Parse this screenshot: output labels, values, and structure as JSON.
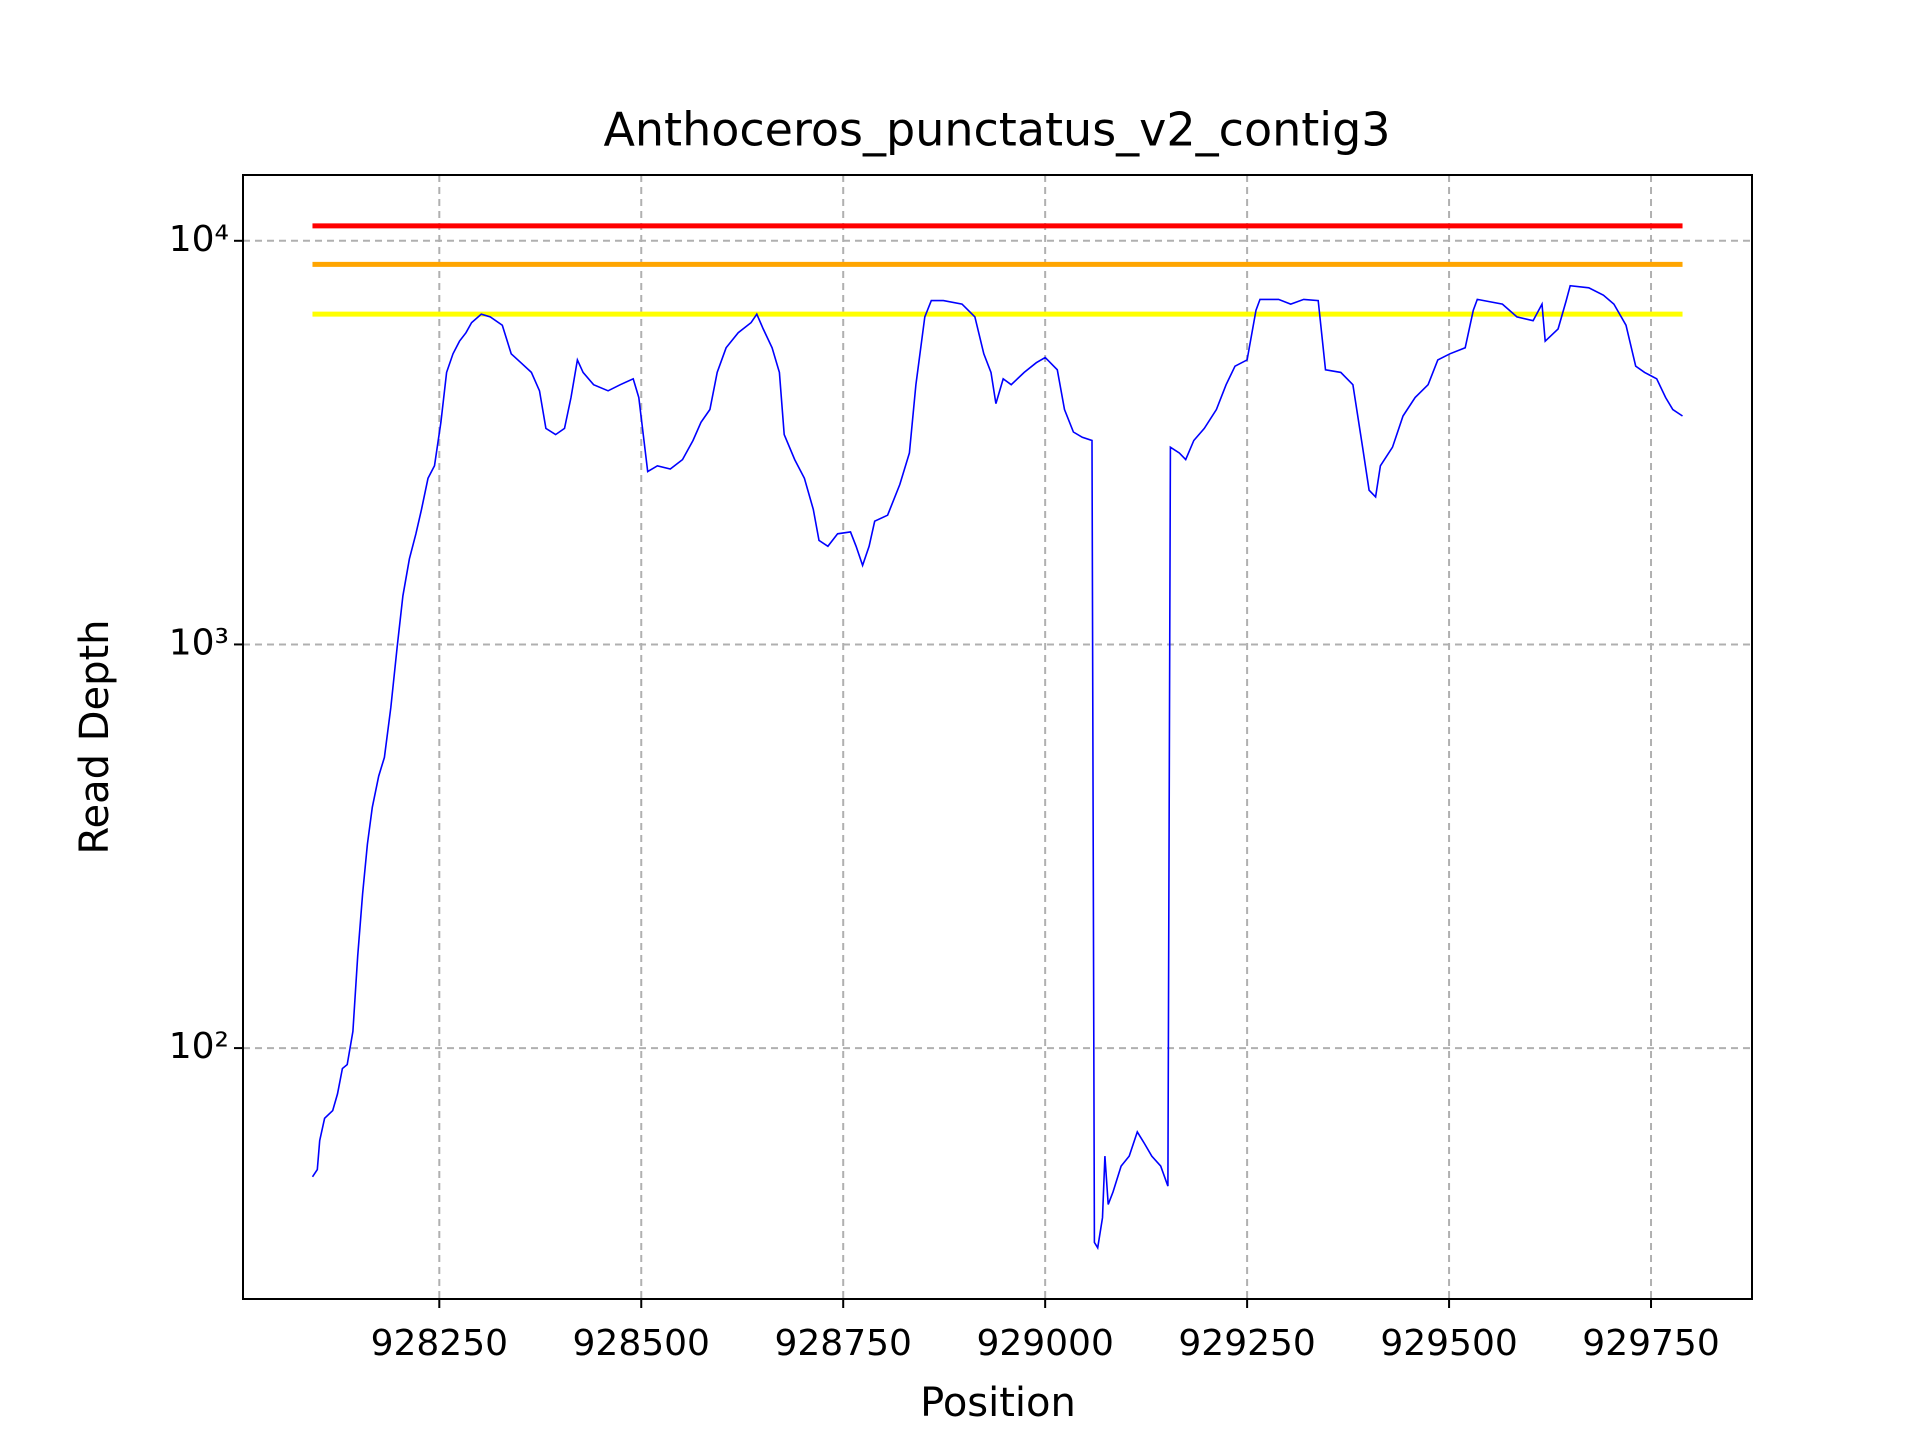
{
  "chart_data": {
    "type": "line",
    "title": "Anthoceros_punctatus_v2_contig3",
    "xlabel": "Position",
    "ylabel": "Read Depth",
    "yscale": "log",
    "grid": true,
    "color": "#0000ff",
    "x": [
      928093,
      928099,
      928102,
      928108,
      928118,
      928124,
      928130,
      928136,
      928143,
      928149,
      928155,
      928161,
      928167,
      928175,
      928182,
      928190,
      928198,
      928205,
      928213,
      928221,
      928228,
      928236,
      928244,
      928252,
      928259,
      928267,
      928275,
      928283,
      928290,
      928302,
      928313,
      928328,
      928339,
      928351,
      928364,
      928374,
      928382,
      928394,
      928405,
      928413,
      928421,
      928428,
      928441,
      928459,
      928474,
      928490,
      928497,
      928508,
      928520,
      928536,
      928551,
      928564,
      928574,
      928585,
      928594,
      928605,
      928620,
      928636,
      928643,
      928651,
      928662,
      928671,
      928677,
      928690,
      928702,
      928713,
      928720,
      928731,
      928743,
      928759,
      928766,
      928774,
      928782,
      928789,
      928805,
      928820,
      928832,
      928840,
      928851,
      928859,
      928874,
      928897,
      928913,
      928924,
      928933,
      928939,
      928948,
      928958,
      928974,
      928989,
      929000,
      929015,
      929024,
      929035,
      929046,
      929058,
      929061,
      929065,
      929071,
      929074,
      929078,
      929084,
      929094,
      929104,
      929114,
      929123,
      929132,
      929143,
      929152,
      929155,
      929166,
      929174,
      929184,
      929197,
      929212,
      929224,
      929235,
      929250,
      929261,
      929266,
      929289,
      929304,
      929320,
      929338,
      929347,
      929366,
      929381,
      929393,
      929401,
      929409,
      929415,
      929430,
      929443,
      929458,
      929474,
      929486,
      929501,
      929520,
      929530,
      929535,
      929566,
      929584,
      929604,
      929615,
      929619,
      929635,
      929645,
      929650,
      929673,
      929691,
      929704,
      929719,
      929731,
      929742,
      929757,
      929768,
      929777,
      929789
    ],
    "values": [
      48,
      50,
      59,
      67,
      70,
      77,
      89,
      91,
      110,
      169,
      241,
      320,
      395,
      472,
      525,
      697,
      993,
      1320,
      1630,
      1880,
      2160,
      2580,
      2770,
      3550,
      4720,
      5250,
      5640,
      5920,
      6270,
      6580,
      6480,
      6180,
      5250,
      4990,
      4720,
      4250,
      3430,
      3310,
      3430,
      4090,
      5070,
      4720,
      4400,
      4250,
      4400,
      4550,
      4090,
      2680,
      2770,
      2720,
      2870,
      3200,
      3550,
      3820,
      4720,
      5430,
      5920,
      6270,
      6580,
      6050,
      5430,
      4720,
      3310,
      2870,
      2580,
      2160,
      1810,
      1750,
      1880,
      1900,
      1750,
      1570,
      1750,
      2020,
      2090,
      2490,
      2980,
      4400,
      6480,
      7110,
      7110,
      6970,
      6480,
      5250,
      4720,
      3950,
      4550,
      4400,
      4720,
      4990,
      5140,
      4790,
      3820,
      3360,
      3260,
      3200,
      33,
      32,
      38,
      54,
      41,
      44,
      51,
      54,
      62,
      58,
      54,
      51,
      45.5,
      3080,
      2980,
      2870,
      3200,
      3430,
      3820,
      4400,
      4890,
      5070,
      6730,
      7160,
      7160,
      6970,
      7160,
      7110,
      4790,
      4720,
      4400,
      3080,
      2410,
      2320,
      2770,
      3080,
      3680,
      4090,
      4400,
      5070,
      5250,
      5430,
      6730,
      7160,
      6970,
      6480,
      6340,
      6970,
      5640,
      6050,
      7110,
      7740,
      7650,
      7330,
      6970,
      6180,
      4890,
      4720,
      4550,
      4090,
      3820,
      3680
    ],
    "hlines": [
      {
        "value": 10890,
        "color": "#ff0000"
      },
      {
        "value": 8740,
        "color": "#ffa500"
      },
      {
        "value": 6580,
        "color": "#ffff00"
      }
    ],
    "xlim": [
      928007,
      929875
    ],
    "ylim": [
      23.9,
      14555
    ],
    "xticks": [
      928250,
      928500,
      928750,
      929000,
      929250,
      929500,
      929750
    ],
    "yticks": [
      {
        "value": 100,
        "label": "10²"
      },
      {
        "value": 1000,
        "label": "10³"
      },
      {
        "value": 10000,
        "label": "10⁴"
      }
    ]
  }
}
